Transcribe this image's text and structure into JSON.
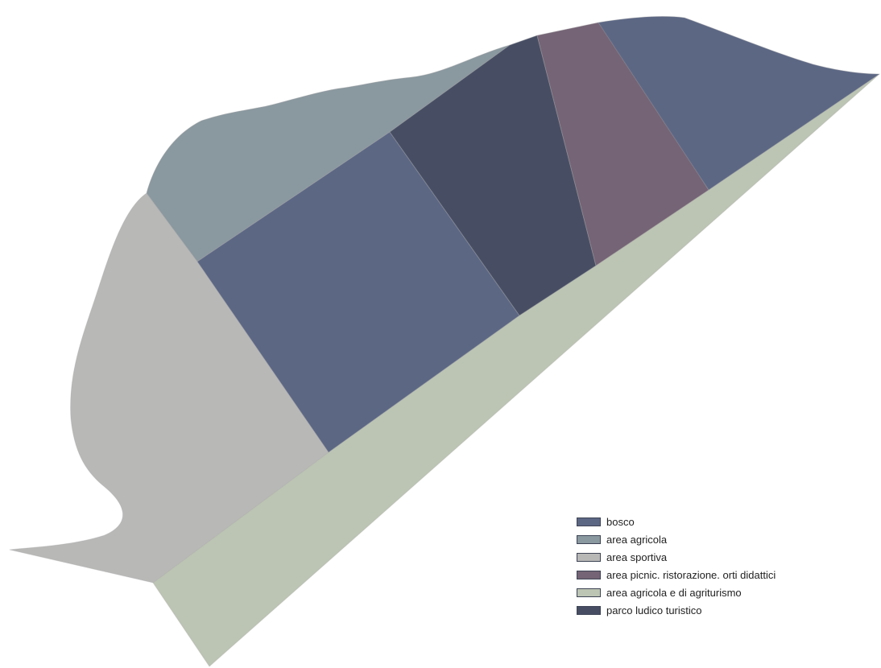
{
  "colors": {
    "bosco": "#5c6784",
    "area_agricola": "#8a989f",
    "area_sportiva": "#b8b8b7",
    "area_picnic": "#756475",
    "area_agriturismo": "#bcc5b3",
    "parco_ludico": "#474e64",
    "separator": "#aaaaaa"
  },
  "legend": {
    "items": [
      {
        "label": "bosco",
        "color": "#5c6784"
      },
      {
        "label": "area agricola",
        "color": "#8a989f"
      },
      {
        "label": "area sportiva",
        "color": "#b8b8b7"
      },
      {
        "label": "area picnic. ristorazione. orti didattici",
        "color": "#756475"
      },
      {
        "label": "area agricola e di agriturismo",
        "color": "#bcc5b3"
      },
      {
        "label": "parco ludico turistico",
        "color": "#474e64"
      }
    ]
  }
}
